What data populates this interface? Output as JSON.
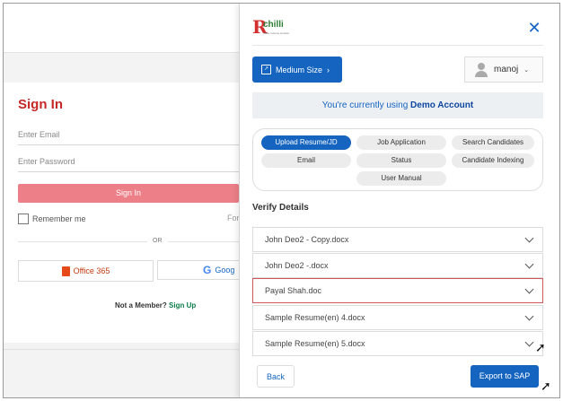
{
  "signin": {
    "title": "Sign In",
    "email_placeholder": "Enter Email",
    "password_placeholder": "Enter Password",
    "signin_button": "Sign In",
    "remember_label": "Remember me",
    "forgot_partial": "For",
    "or_label": "OR",
    "office_button": "Office 365",
    "google_button": "Goog",
    "member_prompt": "Not a Member?",
    "signup_link": "Sign Up"
  },
  "panel": {
    "logo": {
      "text": "chilli",
      "tagline": "Make resume smarter"
    },
    "close_symbol": "✕",
    "size_button": "Medium Size",
    "size_chevron": "›",
    "user_name": "manoj",
    "user_chevron": "⌄",
    "demo_prefix": "You're currently using",
    "demo_account": "Demo Account",
    "tabs": [
      {
        "label": "Upload Resume/JD",
        "active": true
      },
      {
        "label": "Job Application",
        "active": false
      },
      {
        "label": "Search Candidates",
        "active": false
      },
      {
        "label": "Email",
        "active": false
      },
      {
        "label": "Status",
        "active": false
      },
      {
        "label": "Candidate Indexing",
        "active": false
      },
      {
        "label": "User Manual",
        "active": false
      }
    ],
    "verify_title": "Verify Details",
    "files": [
      {
        "name": "John Deo2 - Copy.docx",
        "selected": false
      },
      {
        "name": "John Deo2 -.docx",
        "selected": false
      },
      {
        "name": "Payal Shah.doc",
        "selected": true
      },
      {
        "name": "Sample Resume(en) 4.docx",
        "selected": false
      },
      {
        "name": "Sample Resume(en) 5.docx",
        "selected": false
      }
    ],
    "back_button": "Back",
    "export_button": "Export to SAP"
  },
  "colors": {
    "primary": "#1565c0",
    "signin_title": "#c62828",
    "signin_button": "#ec7f88",
    "selected_border": "#d0575c",
    "signup_link": "#0a7d4a"
  }
}
